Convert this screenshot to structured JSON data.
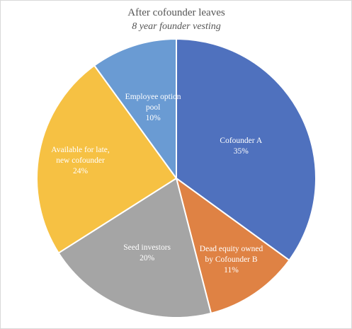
{
  "chart_data": {
    "type": "pie",
    "title": "After cofounder leaves",
    "subtitle": "8 year founder vesting",
    "slices": [
      {
        "label_lines": [
          "Cofounder A",
          "35%"
        ],
        "value": 35,
        "color": "#4f71be"
      },
      {
        "label_lines": [
          "Dead equity owned",
          "by Cofounder B",
          "11%"
        ],
        "value": 11,
        "color": "#df8244"
      },
      {
        "label_lines": [
          "Seed investors",
          "20%"
        ],
        "value": 20,
        "color": "#a5a5a5"
      },
      {
        "label_lines": [
          "Available for late,",
          "new cofounder",
          "24%"
        ],
        "value": 24,
        "color": "#f6c143"
      },
      {
        "label_lines": [
          "Employee option",
          "pool",
          "10%"
        ],
        "value": 10,
        "color": "#6a9bd3"
      }
    ],
    "start_angle_deg": 0,
    "direction": "clockwise",
    "legend": "none"
  }
}
